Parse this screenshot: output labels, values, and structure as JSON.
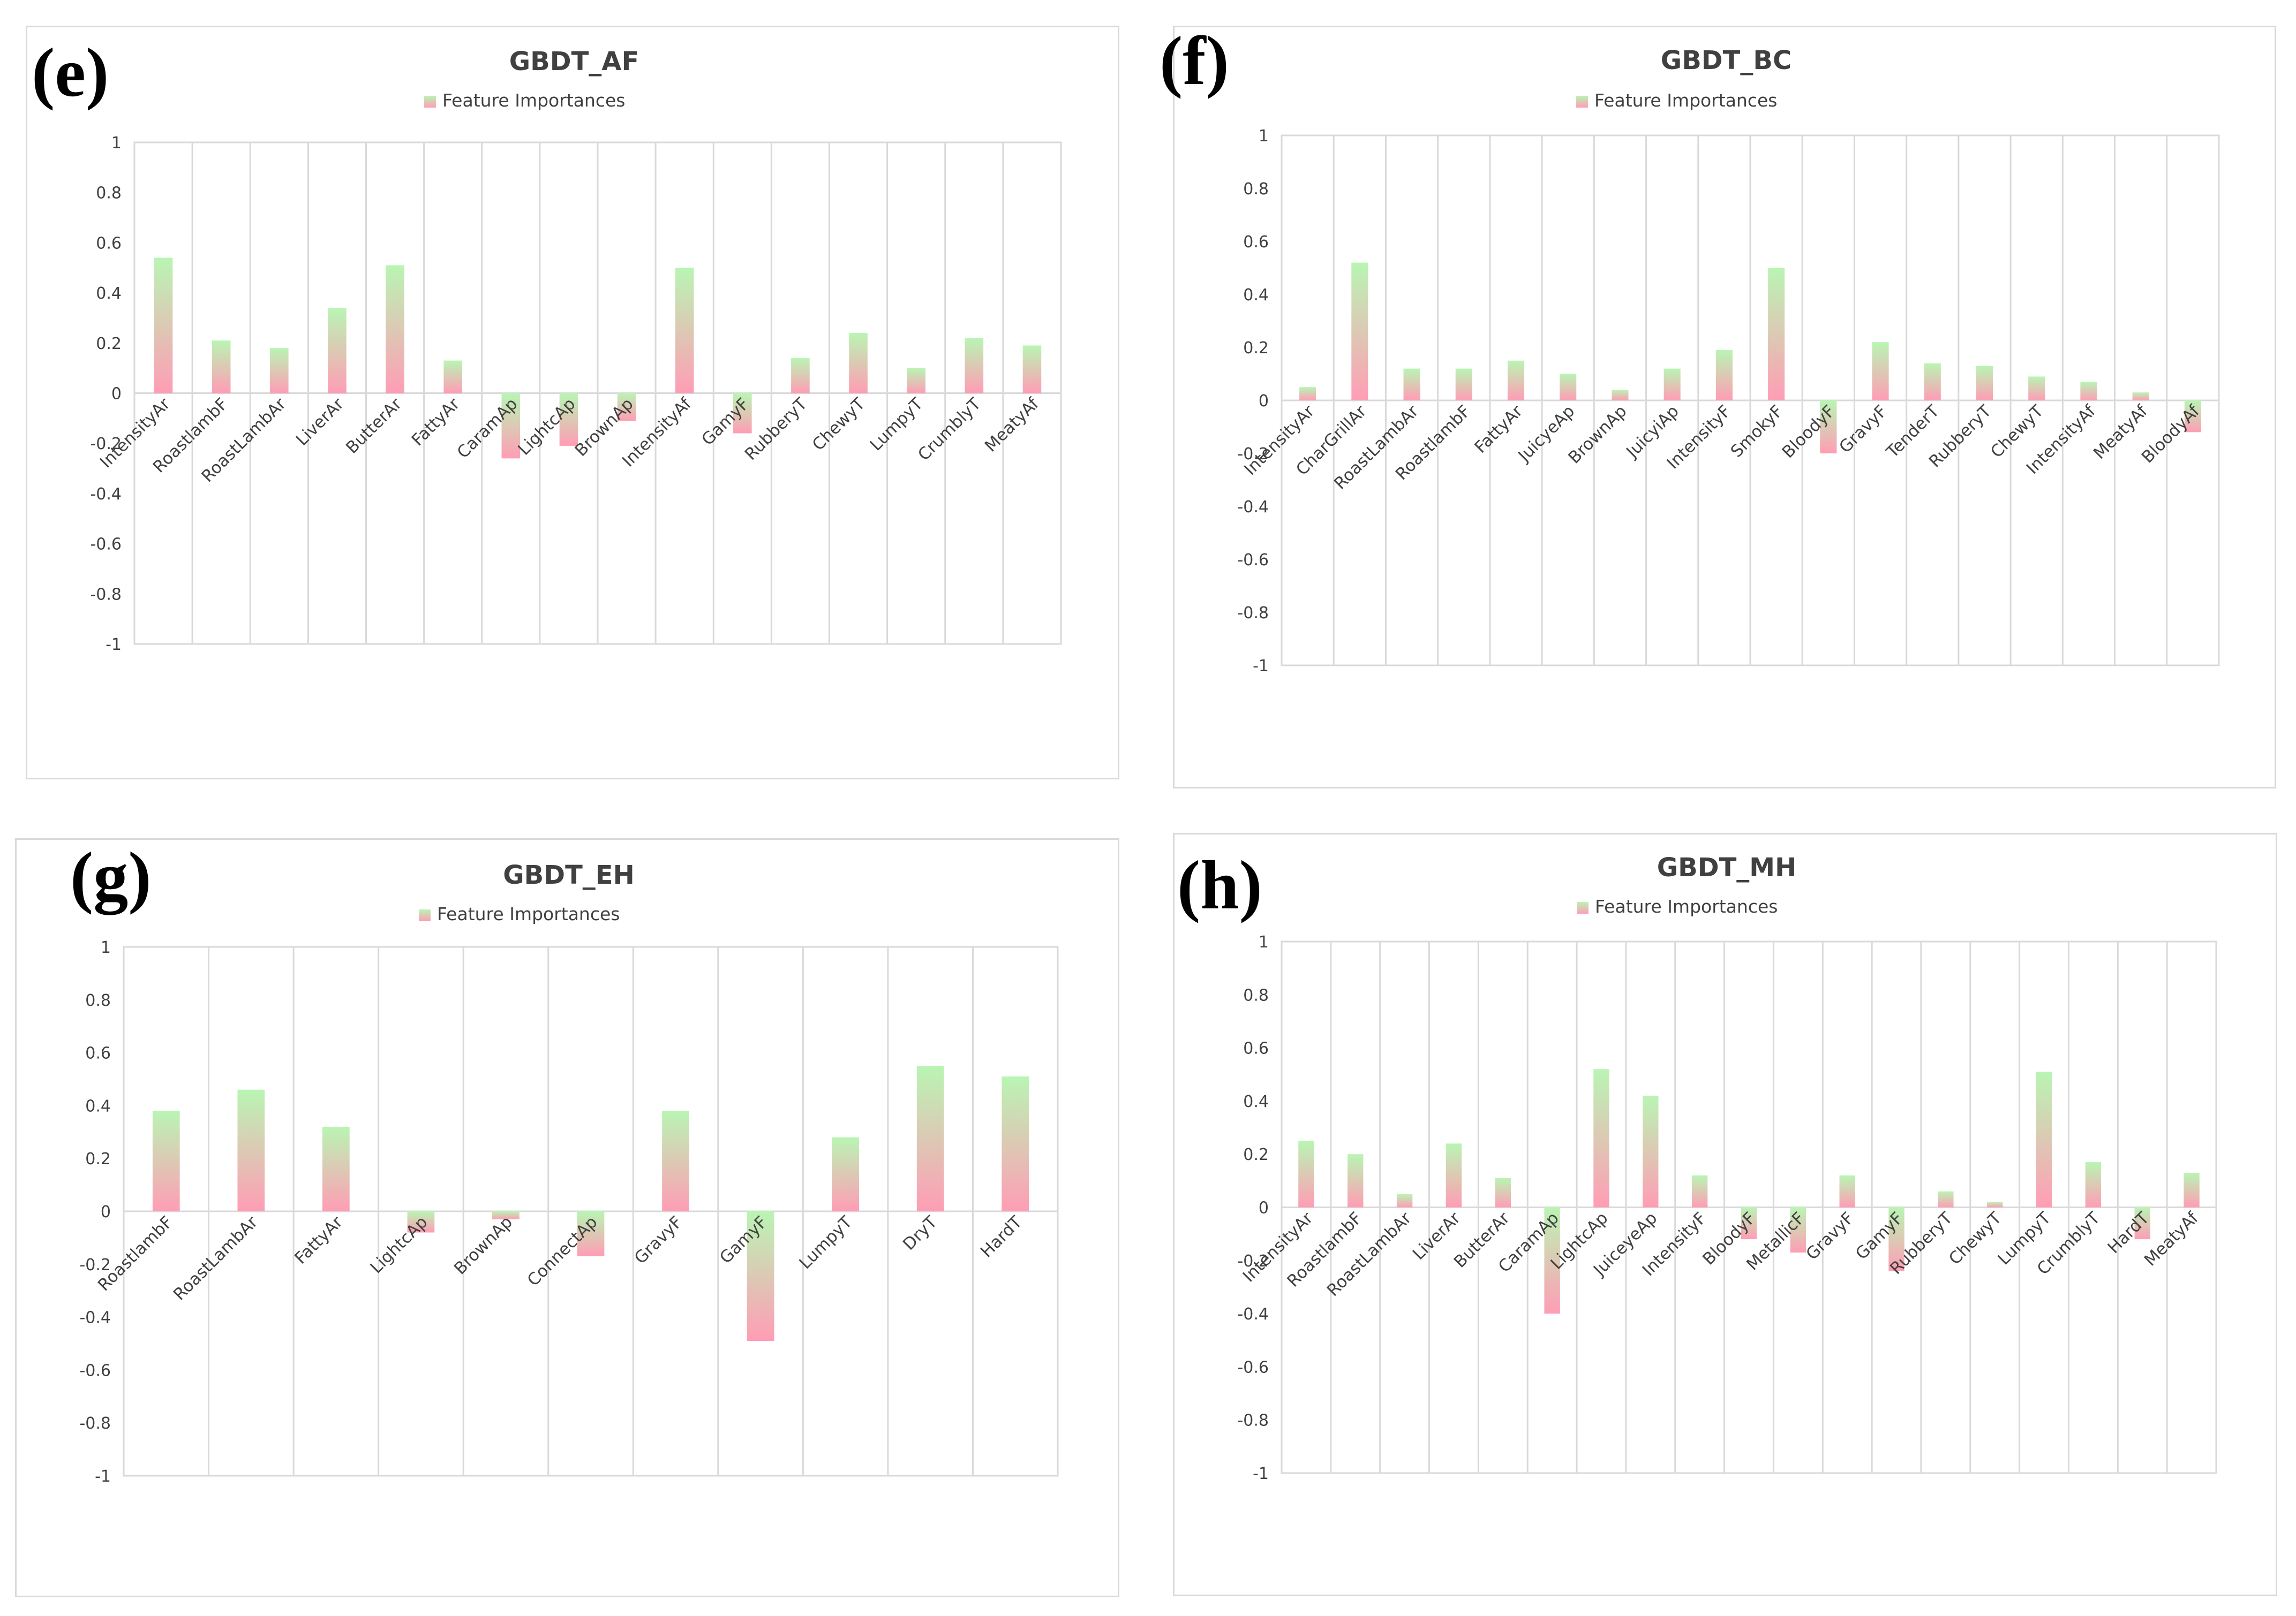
{
  "colors": {
    "pos_top": "#b9f5b3",
    "pos_bottom": "#ff9db5",
    "grid": "#d9d9d9",
    "text": "#404040"
  },
  "chart_data": [
    {
      "panel": "(e)",
      "type": "bar",
      "title": "GBDT_AF",
      "legend": "Feature Importances",
      "ylim": [
        -1,
        1
      ],
      "yticks": [
        "1",
        "0.8",
        "0.6",
        "0.4",
        "0.2",
        "0",
        "-0.2",
        "-0.4",
        "-0.6",
        "-0.8",
        "-1"
      ],
      "categories": [
        "IntensityAr",
        "RoastlambF",
        "RoastLambAr",
        "LiverAr",
        "ButterAr",
        "FattyAr",
        "CaramAp",
        "LightcAp",
        "BrownAp",
        "IntensityAf",
        "GamyF",
        "RubberyT",
        "ChewyT",
        "LumpyT",
        "CrumblyT",
        "MeatyAf"
      ],
      "values": [
        0.54,
        0.21,
        0.18,
        0.34,
        0.51,
        0.13,
        -0.26,
        -0.21,
        -0.11,
        0.5,
        -0.16,
        0.14,
        0.24,
        0.1,
        0.22,
        0.19
      ]
    },
    {
      "panel": "(f)",
      "type": "bar",
      "title": "GBDT_BC",
      "legend": "Feature Importances",
      "ylim": [
        -1,
        1
      ],
      "yticks": [
        "1",
        "0.8",
        "0.6",
        "0.4",
        "0.2",
        "0",
        "-0.2",
        "-0.4",
        "-0.6",
        "-0.8",
        "-1"
      ],
      "categories": [
        "IntensityAr",
        "CharGrillAr",
        "RoastLambAr",
        "RoastlambF",
        "FattyAr",
        "JuicyeAp",
        "BrownAp",
        "JuicyiAp",
        "IntensityF",
        "SmokyF",
        "BloodyF",
        "GravyF",
        "TenderT",
        "RubberyT",
        "ChewyT",
        "IntensityAf",
        "MeatyAf",
        "BloodyAf"
      ],
      "values": [
        0.05,
        0.52,
        0.12,
        0.12,
        0.15,
        0.1,
        0.04,
        0.12,
        0.19,
        0.5,
        -0.2,
        0.22,
        0.14,
        0.13,
        0.09,
        0.07,
        0.03,
        -0.12
      ]
    },
    {
      "panel": "(g)",
      "type": "bar",
      "title": "GBDT_EH",
      "legend": "Feature Importances",
      "ylim": [
        -1,
        1
      ],
      "yticks": [
        "1",
        "0.8",
        "0.6",
        "0.4",
        "0.2",
        "0",
        "-0.2",
        "-0.4",
        "-0.6",
        "-0.8",
        "-1"
      ],
      "categories": [
        "RoastlambF",
        "RoastLambAr",
        "FattyAr",
        "LightcAp",
        "BrownAp",
        "ConnectAp",
        "GravyF",
        "GamyF",
        "LumpyT",
        "DryT",
        "HardT"
      ],
      "values": [
        0.38,
        0.46,
        0.32,
        -0.08,
        -0.03,
        -0.17,
        0.38,
        -0.49,
        0.28,
        0.55,
        0.51
      ]
    },
    {
      "panel": "(h)",
      "type": "bar",
      "title": "GBDT_MH",
      "legend": "Feature Importances",
      "ylim": [
        -1,
        1
      ],
      "yticks": [
        "1",
        "0.8",
        "0.6",
        "0.4",
        "0.2",
        "0",
        "-0.2",
        "-0.4",
        "-0.6",
        "-0.8",
        "-1"
      ],
      "categories": [
        "IntensityAr",
        "RoastlambF",
        "RoastLambAr",
        "LiverAr",
        "ButterAr",
        "CaramAp",
        "LightcAp",
        "JuiceyeAp",
        "IntensityF",
        "BloodyF",
        "MetallicF",
        "GravyF",
        "GamyF",
        "RubberyT",
        "ChewyT",
        "LumpyT",
        "CrumblyT",
        "HardT",
        "MeatyAf"
      ],
      "values": [
        0.25,
        0.2,
        0.05,
        0.24,
        0.11,
        -0.4,
        0.52,
        0.42,
        0.12,
        -0.12,
        -0.17,
        0.12,
        -0.24,
        0.06,
        0.02,
        0.51,
        0.17,
        -0.12,
        0.13
      ]
    }
  ]
}
